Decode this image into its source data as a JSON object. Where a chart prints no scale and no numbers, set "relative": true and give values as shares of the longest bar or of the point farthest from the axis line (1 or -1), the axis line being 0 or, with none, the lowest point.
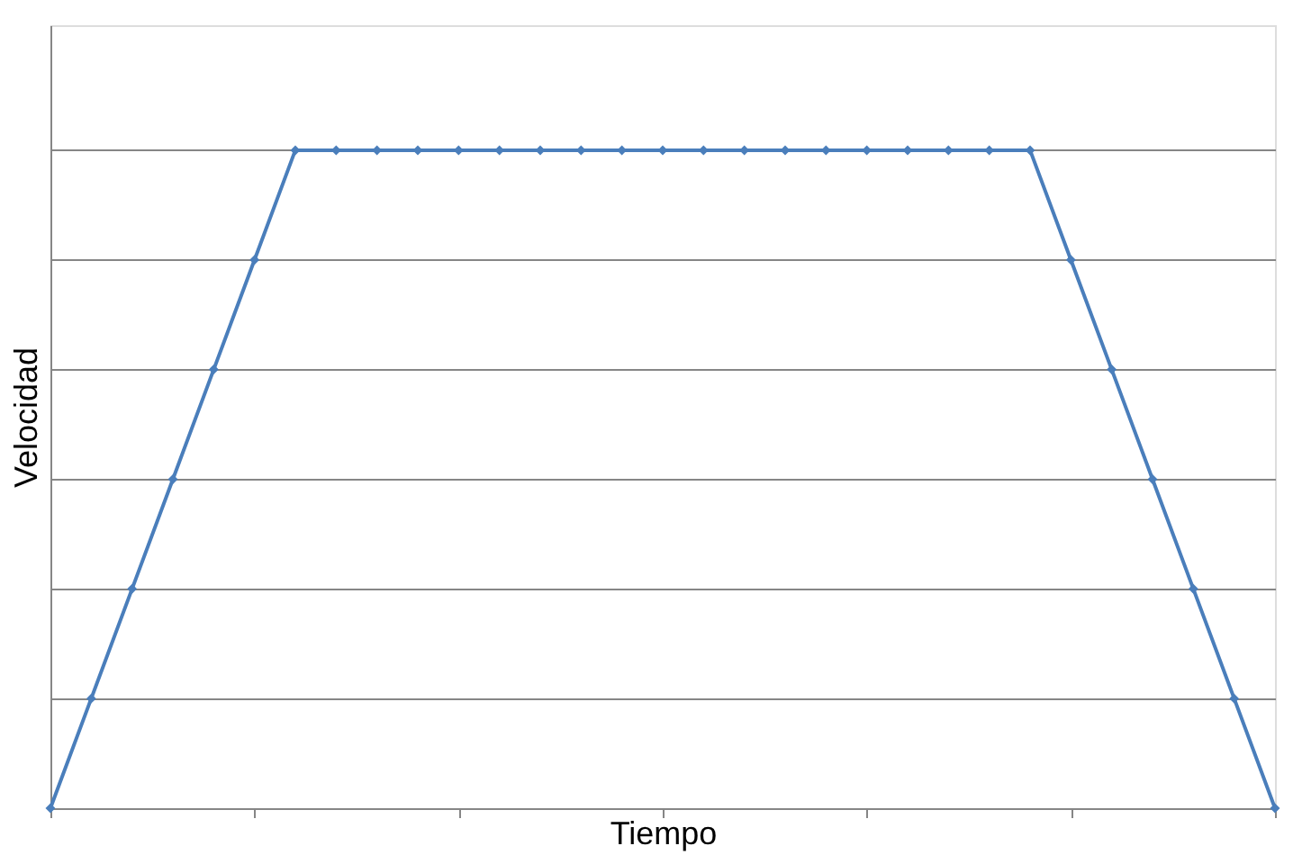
{
  "chart_data": {
    "type": "line",
    "xlabel": "Tiempo",
    "ylabel": "Velocidad",
    "relative": true,
    "categories": [
      null,
      null,
      null,
      null,
      null,
      null,
      null,
      null,
      null,
      null,
      null,
      null,
      null,
      null,
      null,
      null,
      null,
      null,
      null,
      null,
      null,
      null,
      null,
      null,
      null,
      null,
      null,
      null,
      null,
      null,
      null
    ],
    "series": [
      {
        "color": "#4a7ebb",
        "values": [
          0,
          0.1667,
          0.3333,
          0.5,
          0.6667,
          0.8333,
          1,
          1,
          1,
          1,
          1,
          1,
          1,
          1,
          1,
          1,
          1,
          1,
          1,
          1,
          1,
          1,
          1,
          1,
          1,
          0.8333,
          0.6667,
          0.5,
          0.3333,
          0.1667,
          0
        ]
      }
    ],
    "grid": "y",
    "marker": "diamond",
    "line_style": "solid",
    "tick_labels": false
  }
}
